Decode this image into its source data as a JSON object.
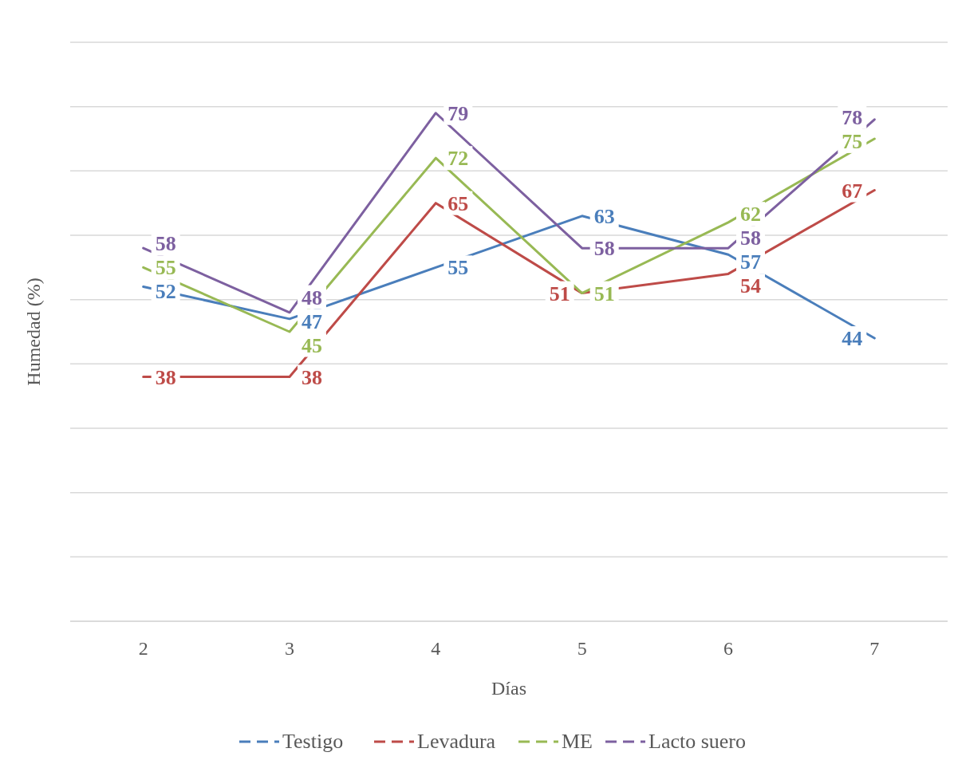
{
  "chart_data": {
    "type": "line",
    "xlabel": "Días",
    "ylabel": "Humedad (%)",
    "categories": [
      "2",
      "3",
      "4",
      "5",
      "6",
      "7"
    ],
    "series": [
      {
        "name": "Testigo",
        "color": "#4a7ebb",
        "values": [
          52,
          47,
          55,
          63,
          57,
          44
        ]
      },
      {
        "name": "Levadura",
        "color": "#be4b48",
        "values": [
          38,
          38,
          65,
          51,
          54,
          67
        ]
      },
      {
        "name": "ME",
        "color": "#98b954",
        "values": [
          55,
          45,
          72,
          51,
          62,
          75
        ]
      },
      {
        "name": "Lacto suero",
        "color": "#7d60a0",
        "values": [
          58,
          48,
          79,
          58,
          58,
          78
        ]
      }
    ],
    "ylim": [
      0,
      90
    ],
    "yticks": [
      {
        "value": 0,
        "label": null
      },
      {
        "value": 10,
        "label": null
      },
      {
        "value": 20,
        "label": null
      },
      {
        "value": 30,
        "label": null
      },
      {
        "value": 40,
        "label": null
      },
      {
        "value": 50,
        "label": null
      },
      {
        "value": 60,
        "label": null
      },
      {
        "value": 70,
        "label": null
      },
      {
        "value": 80,
        "label": null
      },
      {
        "value": 90,
        "label": null
      }
    ],
    "tick_labels": "x",
    "grid": "y",
    "legend": "bottom",
    "line_style": "solid",
    "data_labels": true
  }
}
